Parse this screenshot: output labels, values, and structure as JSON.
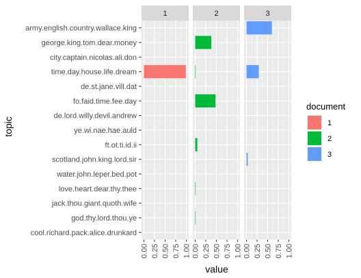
{
  "chart_data": {
    "type": "bar",
    "orientation": "horizontal",
    "facet_by": "document",
    "xlabel": "value",
    "ylabel": "topic",
    "xlim": [
      0,
      1
    ],
    "x_ticks": [
      "0.00",
      "0.25",
      "0.50",
      "0.75",
      "1.00"
    ],
    "grid": true,
    "facets": [
      "1",
      "2",
      "3"
    ],
    "topics": [
      "army.english.country.wallace.king",
      "george.king.tom.dear.money",
      "city.captain.nicolas.ali.don",
      "time.day.house.life.dream",
      "de.st.jane.vill.dat",
      "fo.faid.time.fee.day",
      "de.lord.willy.devil.andrew",
      "ye.wi.nae.hae.auld",
      "ft.ot.ti.id.ii",
      "scotland.john.king.lord.sir",
      "water.john.leper.bed.pot",
      "love.heart.dear.thy.thee",
      "jack.thou.giant.quoth.wife",
      "god.thy.lord.thou.ye",
      "cool.richard.pack.alice.drunkard"
    ],
    "series": [
      {
        "name": "1",
        "color": "#F8766D",
        "values": [
          0,
          0,
          0,
          0.99,
          0,
          0,
          0,
          0,
          0,
          0,
          0,
          0,
          0,
          0,
          0
        ]
      },
      {
        "name": "2",
        "color": "#00BA38",
        "values": [
          0,
          0.38,
          0,
          0.01,
          0,
          0.48,
          0,
          0,
          0.05,
          0,
          0,
          0.01,
          0,
          0.005,
          0
        ]
      },
      {
        "name": "3",
        "color": "#619CFF",
        "values": [
          0.6,
          0,
          0,
          0.29,
          0,
          0,
          0,
          0,
          0,
          0.03,
          0,
          0,
          0,
          0,
          0
        ]
      }
    ],
    "legend": {
      "title": "document",
      "position": "right",
      "entries": [
        "1",
        "2",
        "3"
      ]
    }
  }
}
